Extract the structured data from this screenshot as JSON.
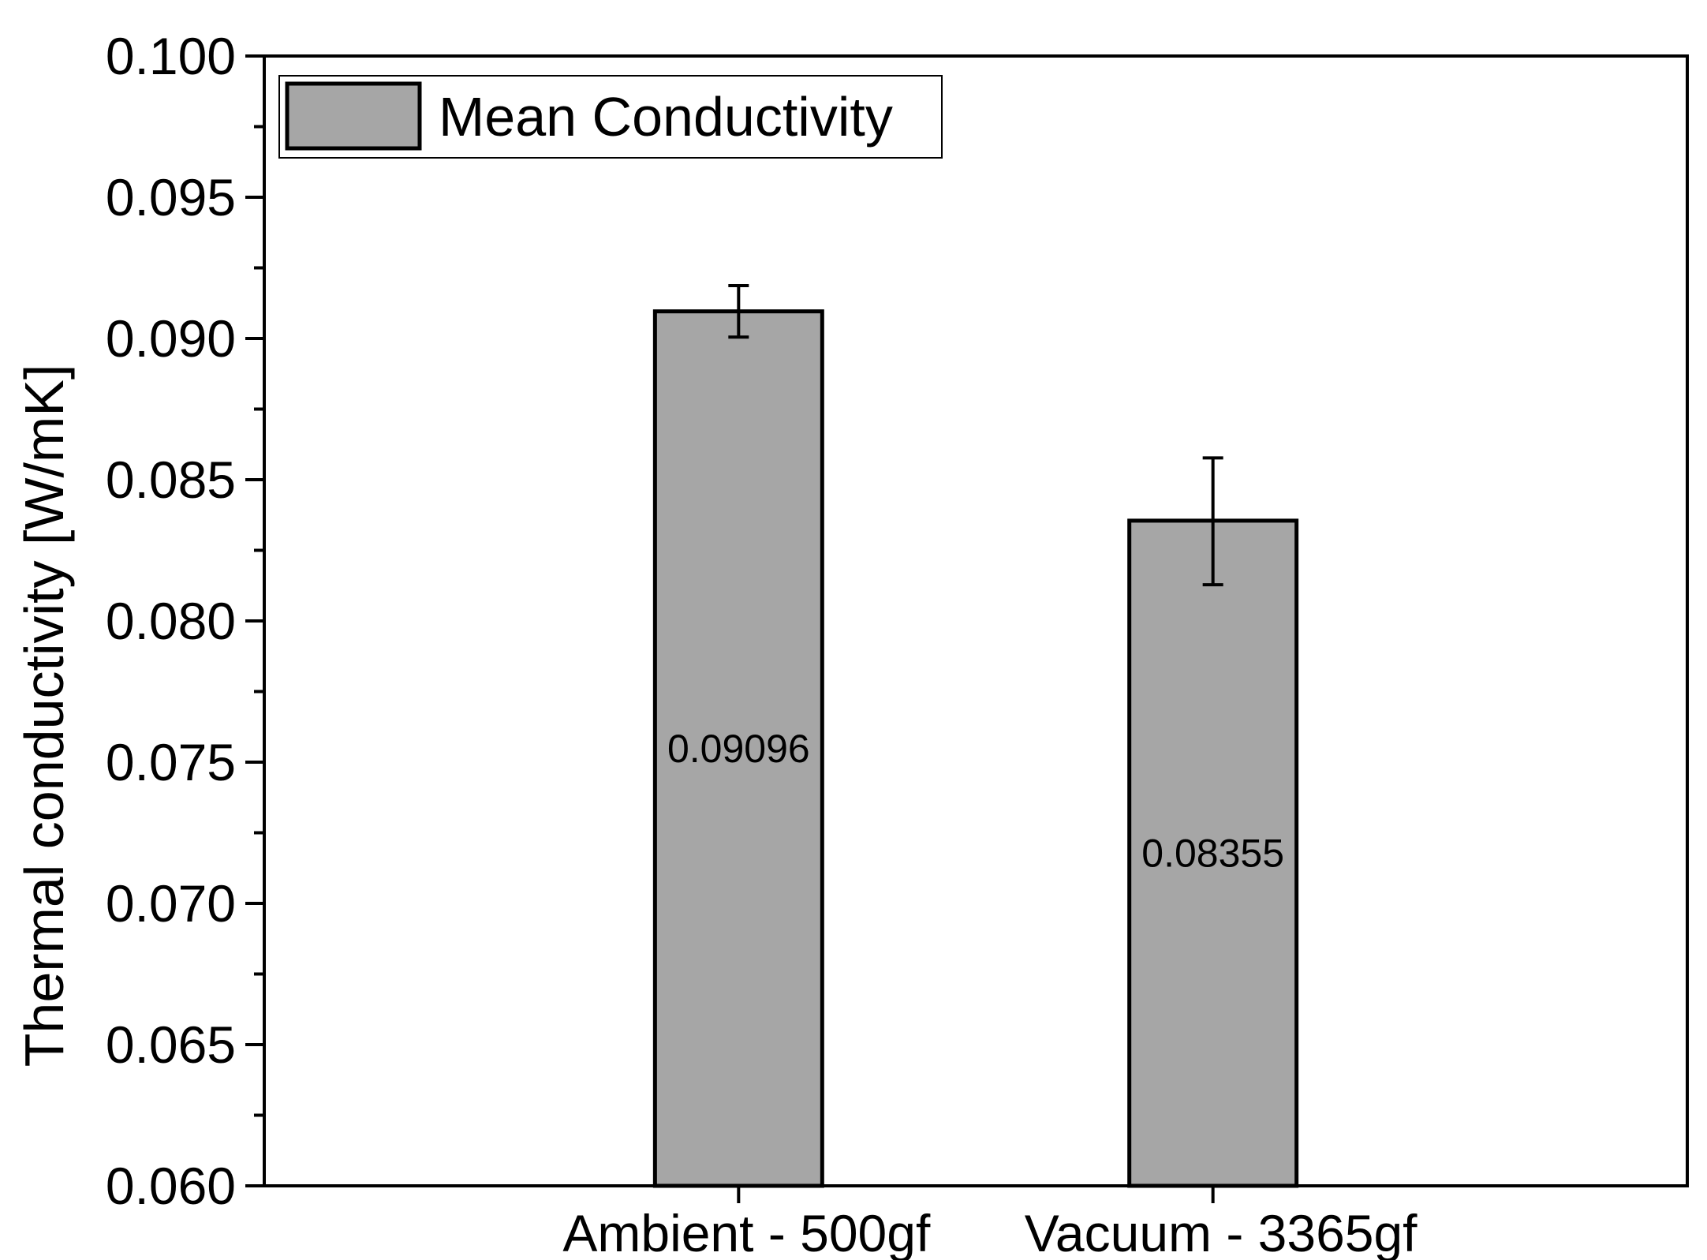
{
  "chart_data": {
    "type": "bar",
    "title": "",
    "xlabel": "",
    "ylabel": "Thermal conductivity [W/mK]",
    "ylim": [
      0.06,
      0.1
    ],
    "yticks": [
      "0.060",
      "0.065",
      "0.070",
      "0.075",
      "0.080",
      "0.085",
      "0.090",
      "0.095",
      "0.100"
    ],
    "ytick_values": [
      0.06,
      0.065,
      0.07,
      0.075,
      0.08,
      0.085,
      0.09,
      0.095,
      0.1
    ],
    "categories": [
      "Ambient - 500gf",
      "Vacuum - 3365gf"
    ],
    "series": [
      {
        "name": "Mean Conductivity",
        "values": [
          0.09096,
          0.08355
        ],
        "error_low": [
          0.09005,
          0.08128
        ],
        "error_high": [
          0.09187,
          0.08577
        ],
        "data_labels": [
          "0.09096",
          "0.08355"
        ],
        "color": "#a6a6a6"
      }
    ],
    "legend": {
      "position": "top-left",
      "entries": [
        "Mean Conductivity"
      ]
    },
    "grid": false
  }
}
